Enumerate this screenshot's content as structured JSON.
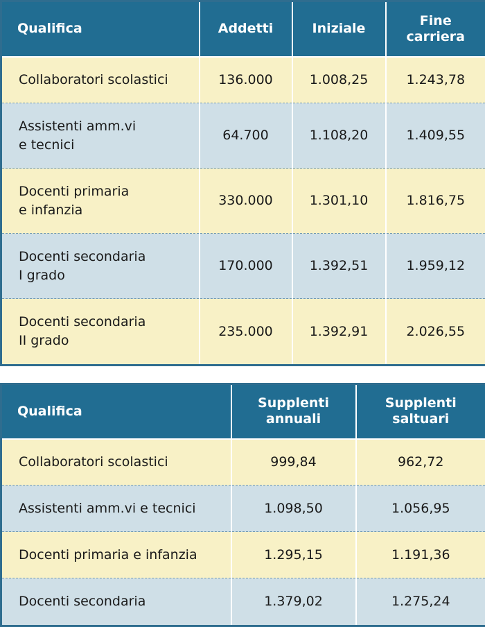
{
  "table1": {
    "headers": [
      "Qualifica",
      "Addetti",
      "Iniziale",
      "Fine carriera"
    ],
    "rows": [
      {
        "label": "Collaboratori scolastici",
        "addetti": "136.000",
        "iniziale": "1.008,25",
        "fine": "1.243,78"
      },
      {
        "label": "Assistenti amm.vi\ne tecnici",
        "addetti": "64.700",
        "iniziale": "1.108,20",
        "fine": "1.409,55"
      },
      {
        "label": "Docenti primaria\ne infanzia",
        "addetti": "330.000",
        "iniziale": "1.301,10",
        "fine": "1.816,75"
      },
      {
        "label": "Docenti secondaria\nI grado",
        "addetti": "170.000",
        "iniziale": "1.392,51",
        "fine": "1.959,12"
      },
      {
        "label": "Docenti secondaria\nII grado",
        "addetti": "235.000",
        "iniziale": "1.392,91",
        "fine": "2.026,55"
      }
    ]
  },
  "table2": {
    "headers": [
      "Qualifica",
      "Supplenti annuali",
      "Supplenti saltuari"
    ],
    "rows": [
      {
        "label": "Collaboratori scolastici",
        "annuali": "999,84",
        "saltuari": "962,72"
      },
      {
        "label": "Assistenti amm.vi e tecnici",
        "annuali": "1.098,50",
        "saltuari": "1.056,95"
      },
      {
        "label": "Docenti primaria e infanzia",
        "annuali": "1.295,15",
        "saltuari": "1.191,36"
      },
      {
        "label": "Docenti secondaria",
        "annuali": "1.379,02",
        "saltuari": "1.275,24"
      }
    ]
  },
  "colors": {
    "header": "#216d92",
    "row_yellow": "#f8f1c6",
    "row_blue": "#cfdfe7"
  }
}
